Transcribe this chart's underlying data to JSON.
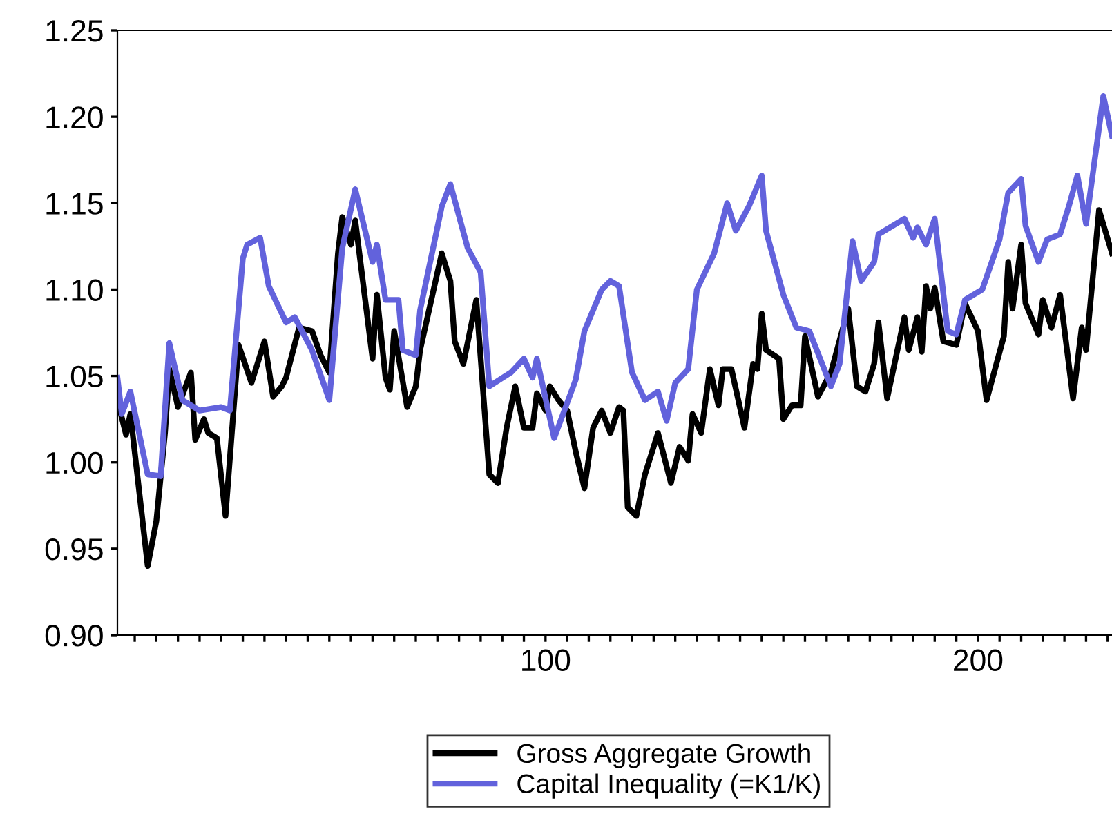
{
  "chart_data": {
    "type": "line",
    "xlim": [
      1,
      231
    ],
    "xticks": [
      {
        "value": 5,
        "label": null
      },
      {
        "value": 10,
        "label": null
      },
      {
        "value": 15,
        "label": null
      },
      {
        "value": 20,
        "label": null
      },
      {
        "value": 25,
        "label": null
      },
      {
        "value": 30,
        "label": null
      },
      {
        "value": 35,
        "label": null
      },
      {
        "value": 40,
        "label": null
      },
      {
        "value": 45,
        "label": null
      },
      {
        "value": 50,
        "label": null
      },
      {
        "value": 55,
        "label": null
      },
      {
        "value": 60,
        "label": null
      },
      {
        "value": 65,
        "label": null
      },
      {
        "value": 70,
        "label": null
      },
      {
        "value": 75,
        "label": null
      },
      {
        "value": 80,
        "label": null
      },
      {
        "value": 85,
        "label": null
      },
      {
        "value": 90,
        "label": null
      },
      {
        "value": 95,
        "label": null
      },
      100,
      {
        "value": 105,
        "label": null
      },
      {
        "value": 110,
        "label": null
      },
      {
        "value": 115,
        "label": null
      },
      {
        "value": 120,
        "label": null
      },
      {
        "value": 125,
        "label": null
      },
      {
        "value": 130,
        "label": null
      },
      {
        "value": 135,
        "label": null
      },
      {
        "value": 140,
        "label": null
      },
      {
        "value": 145,
        "label": null
      },
      {
        "value": 150,
        "label": null
      },
      {
        "value": 155,
        "label": null
      },
      {
        "value": 160,
        "label": null
      },
      {
        "value": 165,
        "label": null
      },
      {
        "value": 170,
        "label": null
      },
      {
        "value": 175,
        "label": null
      },
      {
        "value": 180,
        "label": null
      },
      {
        "value": 185,
        "label": null
      },
      {
        "value": 190,
        "label": null
      },
      {
        "value": 195,
        "label": null
      },
      200,
      {
        "value": 205,
        "label": null
      },
      {
        "value": 210,
        "label": null
      },
      {
        "value": 215,
        "label": null
      },
      {
        "value": 220,
        "label": null
      },
      {
        "value": 225,
        "label": null
      },
      {
        "value": 230,
        "label": null
      }
    ],
    "ylim": [
      0.9,
      1.25
    ],
    "yticks": [
      {
        "value": 0.9,
        "label": "0.90"
      },
      {
        "value": 0.95,
        "label": "0.95"
      },
      {
        "value": 1.0,
        "label": "1.00"
      },
      {
        "value": 1.05,
        "label": "1.05"
      },
      {
        "value": 1.1,
        "label": "1.10"
      },
      {
        "value": 1.15,
        "label": "1.15"
      },
      {
        "value": 1.2,
        "label": "1.20"
      },
      {
        "value": 1.25,
        "label": "1.25"
      }
    ],
    "grid": false,
    "legend": "bottom",
    "marker": "none",
    "line_style": "solid",
    "series": [
      {
        "name": "Gross Aggregate Growth",
        "color": "#000000",
        "x": [
          1,
          3,
          4,
          8,
          10,
          12,
          13,
          15,
          18,
          19,
          21,
          22,
          24,
          26,
          29,
          32,
          35,
          37,
          39,
          40,
          43,
          46,
          48,
          50,
          52,
          53,
          55,
          56,
          60,
          61,
          63,
          64,
          65,
          68,
          70,
          71,
          76,
          78,
          79,
          81,
          84,
          87,
          89,
          91,
          93,
          95,
          97,
          98,
          100,
          101,
          103,
          105,
          107,
          109,
          111,
          113,
          115,
          117,
          118,
          119,
          121,
          123,
          124,
          126,
          129,
          131,
          133,
          134,
          136,
          138,
          140,
          141,
          143,
          146,
          148,
          149,
          150,
          151,
          154,
          155,
          157,
          159,
          160,
          163,
          166,
          170,
          172,
          174,
          176,
          177,
          179,
          183,
          184,
          186,
          187,
          188,
          189,
          190,
          192,
          195,
          197,
          200,
          202,
          206,
          207,
          208,
          210,
          211,
          214,
          215,
          217,
          219,
          222,
          224,
          225,
          228,
          231
        ],
        "values": [
          1.036,
          1.016,
          1.028,
          0.94,
          0.966,
          1.017,
          1.054,
          1.032,
          1.052,
          1.013,
          1.025,
          1.017,
          1.014,
          0.969,
          1.068,
          1.046,
          1.07,
          1.038,
          1.044,
          1.049,
          1.078,
          1.076,
          1.062,
          1.052,
          1.121,
          1.142,
          1.126,
          1.14,
          1.06,
          1.097,
          1.049,
          1.042,
          1.076,
          1.032,
          1.044,
          1.065,
          1.121,
          1.105,
          1.07,
          1.057,
          1.094,
          0.993,
          0.988,
          1.02,
          1.044,
          1.02,
          1.02,
          1.04,
          1.03,
          1.044,
          1.036,
          1.03,
          1.006,
          0.985,
          1.02,
          1.03,
          1.017,
          1.032,
          1.03,
          0.974,
          0.969,
          0.993,
          1.001,
          1.017,
          0.988,
          1.009,
          1.001,
          1.028,
          1.017,
          1.054,
          1.033,
          1.054,
          1.054,
          1.02,
          1.057,
          1.054,
          1.086,
          1.065,
          1.06,
          1.025,
          1.033,
          1.033,
          1.073,
          1.038,
          1.052,
          1.089,
          1.044,
          1.041,
          1.057,
          1.081,
          1.037,
          1.084,
          1.065,
          1.084,
          1.064,
          1.102,
          1.089,
          1.101,
          1.07,
          1.068,
          1.092,
          1.076,
          1.036,
          1.073,
          1.116,
          1.089,
          1.126,
          1.092,
          1.074,
          1.094,
          1.078,
          1.097,
          1.037,
          1.078,
          1.065,
          1.146,
          1.121
        ]
      },
      {
        "name": "Capital Inequality (=K1/K)",
        "color": "#6262dc",
        "x": [
          1,
          2,
          4,
          8,
          11,
          13,
          16,
          20,
          25,
          27,
          30,
          31,
          34,
          36,
          40,
          42,
          46,
          50,
          53,
          56,
          60,
          61,
          63,
          66,
          67,
          70,
          71,
          76,
          78,
          82,
          85,
          87,
          92,
          95,
          97,
          98,
          102,
          107,
          109,
          113,
          115,
          117,
          120,
          123,
          126,
          128,
          130,
          133,
          135,
          139,
          142,
          144,
          147,
          150,
          151,
          155,
          158,
          161,
          166,
          168,
          171,
          173,
          176,
          177,
          183,
          185,
          186,
          188,
          190,
          193,
          195,
          197,
          201,
          205,
          207,
          210,
          211,
          214,
          216,
          219,
          221,
          223,
          225,
          229,
          231
        ],
        "values": [
          1.049,
          1.028,
          1.041,
          0.993,
          0.992,
          1.069,
          1.036,
          1.03,
          1.032,
          1.03,
          1.118,
          1.126,
          1.13,
          1.102,
          1.081,
          1.084,
          1.065,
          1.036,
          1.124,
          1.158,
          1.116,
          1.126,
          1.094,
          1.094,
          1.065,
          1.062,
          1.088,
          1.148,
          1.161,
          1.124,
          1.11,
          1.044,
          1.052,
          1.06,
          1.049,
          1.06,
          1.014,
          1.048,
          1.076,
          1.1,
          1.105,
          1.102,
          1.052,
          1.036,
          1.041,
          1.024,
          1.046,
          1.054,
          1.1,
          1.121,
          1.15,
          1.134,
          1.148,
          1.166,
          1.134,
          1.097,
          1.078,
          1.076,
          1.044,
          1.057,
          1.128,
          1.105,
          1.116,
          1.132,
          1.141,
          1.13,
          1.136,
          1.126,
          1.141,
          1.076,
          1.074,
          1.094,
          1.1,
          1.129,
          1.156,
          1.164,
          1.137,
          1.116,
          1.129,
          1.132,
          1.148,
          1.166,
          1.138,
          1.212,
          1.189
        ]
      }
    ]
  }
}
